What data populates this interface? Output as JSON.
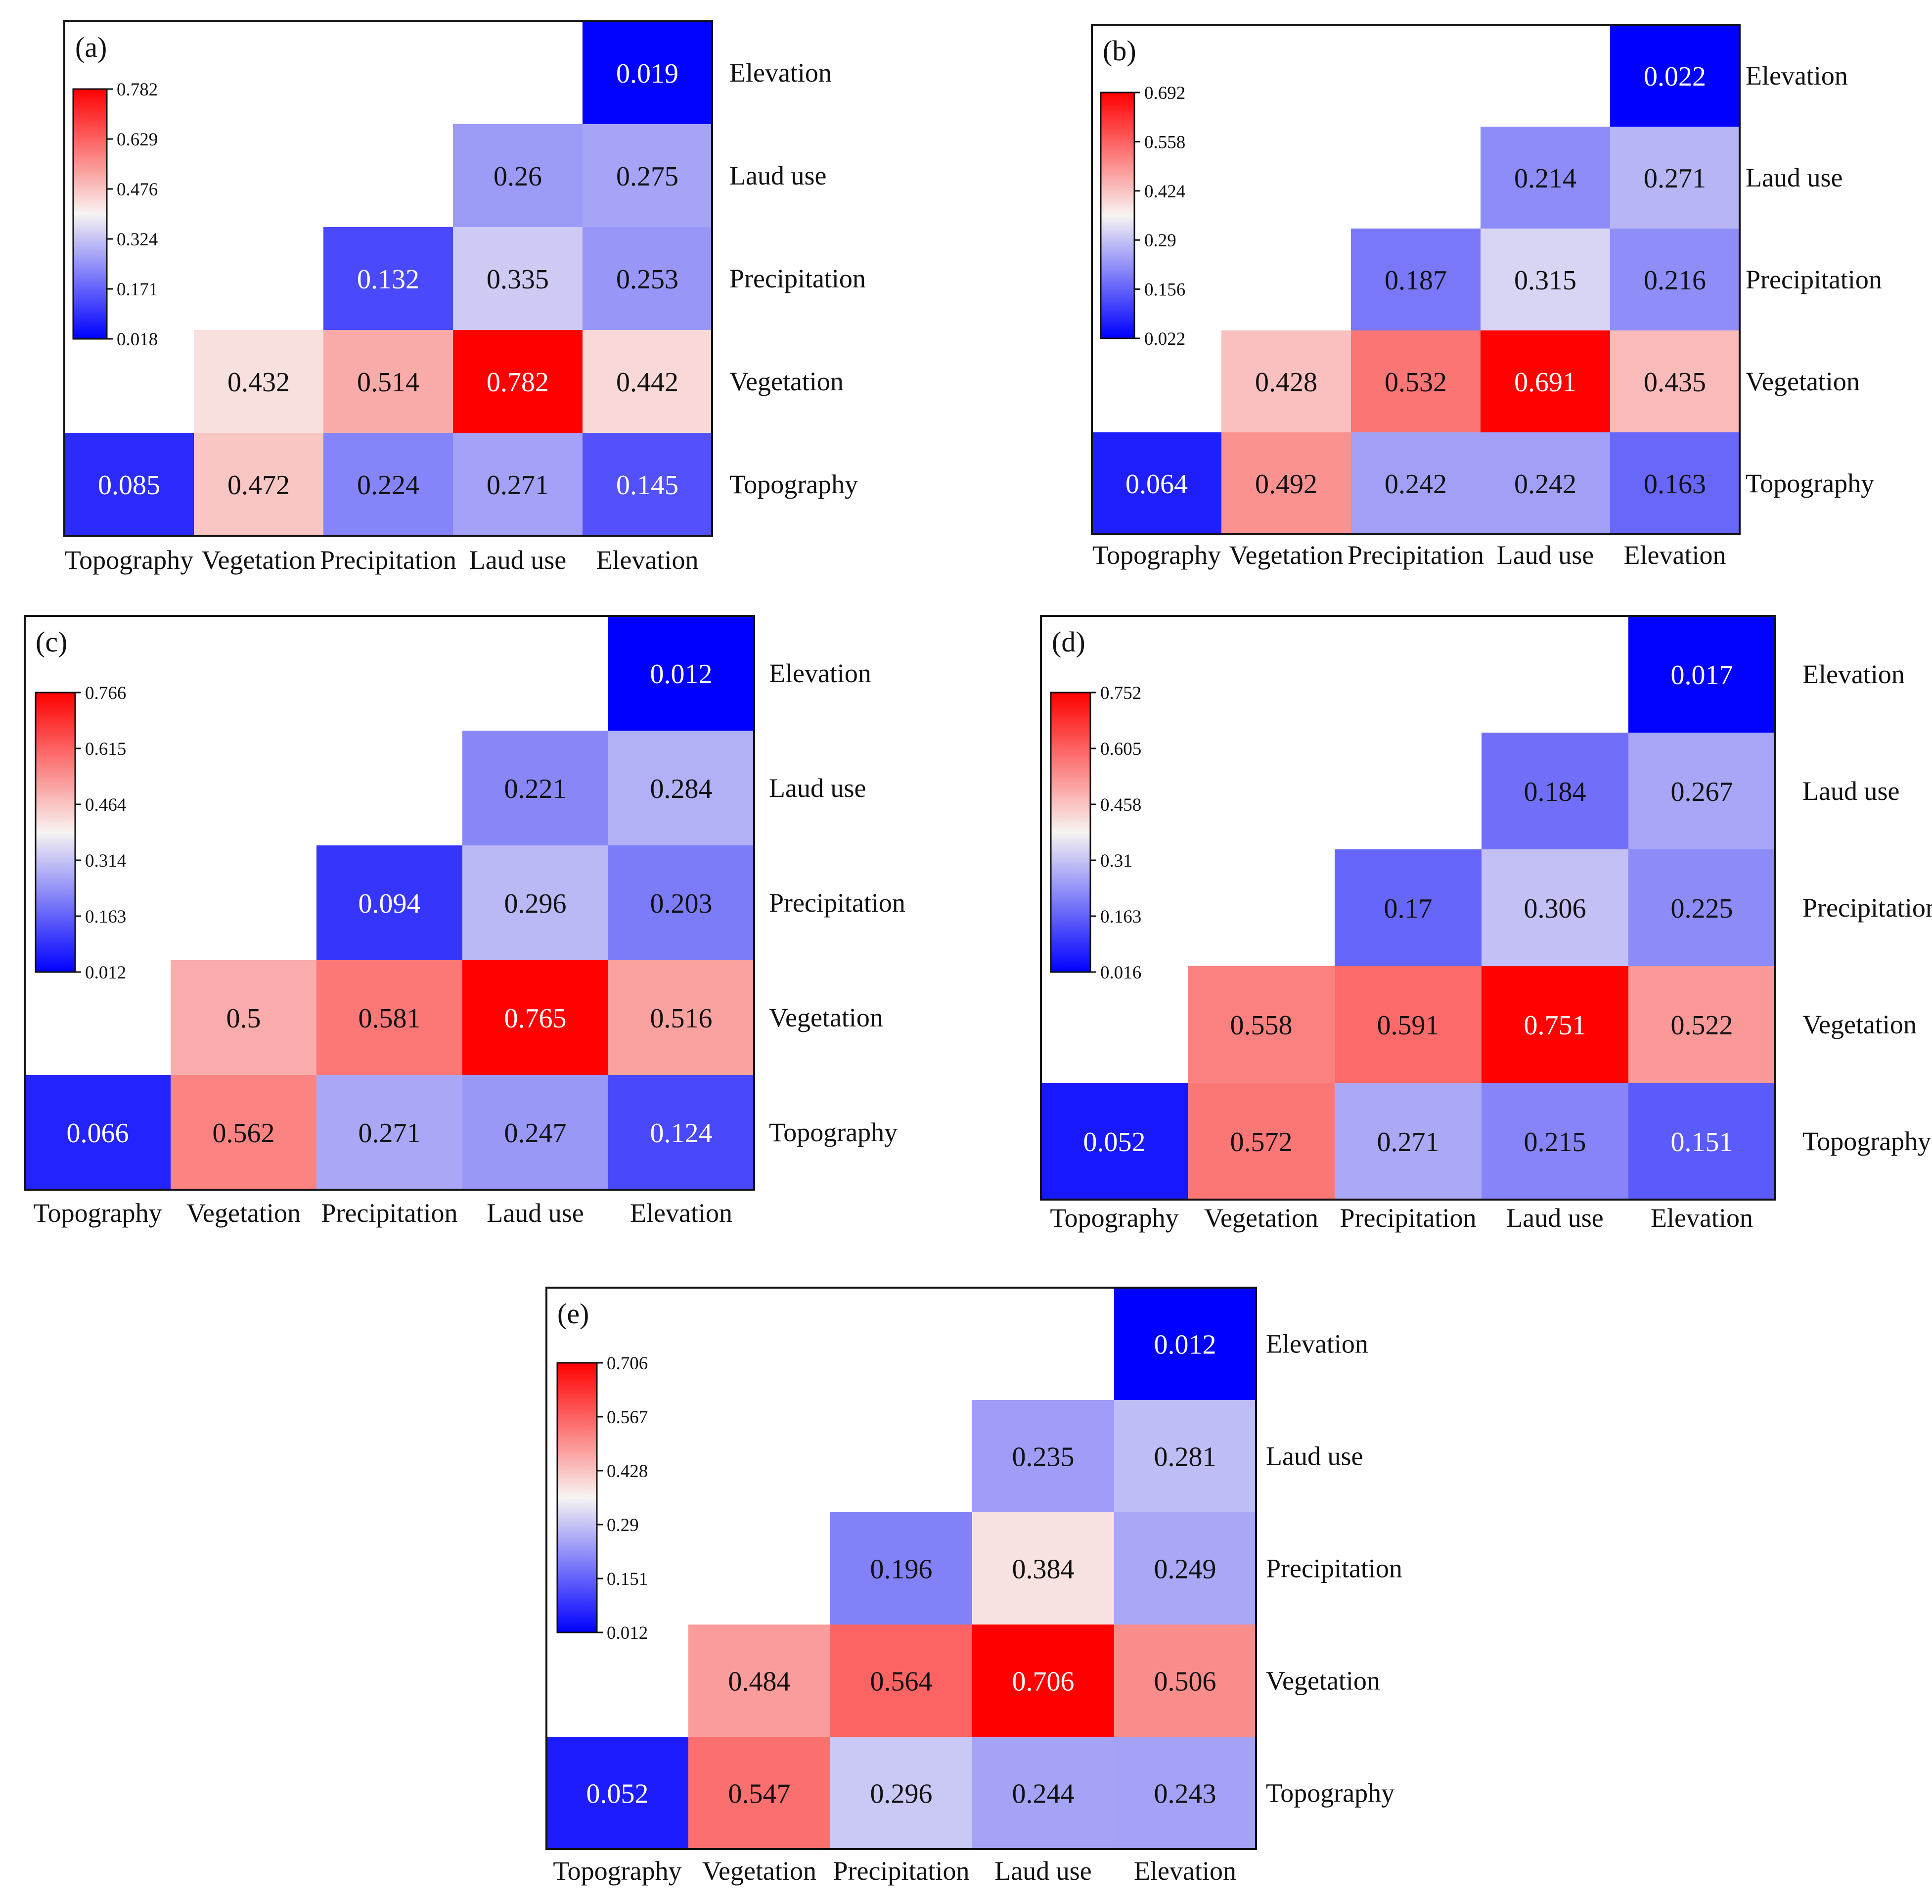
{
  "chart_data": [
    {
      "type": "heatmap",
      "panel_label": "(a)",
      "x_labels": [
        "Topography",
        "Vegetation",
        "Precipitation",
        "Laud use",
        "Elevation"
      ],
      "y_labels": [
        "Elevation",
        "Laud use",
        "Precipitation",
        "Vegetation",
        "Topography"
      ],
      "colorbar_ticks": [
        "0.782",
        "0.629",
        "0.476",
        "0.324",
        "0.171",
        "0.018"
      ],
      "color_range": [
        0.018,
        0.782
      ],
      "rows": [
        [
          null,
          null,
          null,
          null,
          0.019
        ],
        [
          null,
          null,
          null,
          0.26,
          0.275
        ],
        [
          null,
          null,
          0.132,
          0.335,
          0.253
        ],
        [
          null,
          0.432,
          0.514,
          0.782,
          0.442
        ],
        [
          0.085,
          0.472,
          0.224,
          0.271,
          0.145
        ]
      ],
      "row_labels": [
        [
          null,
          null,
          null,
          null,
          "0.019"
        ],
        [
          null,
          null,
          null,
          "0.26",
          "0.275"
        ],
        [
          null,
          null,
          "0.132",
          "0.335",
          "0.253"
        ],
        [
          null,
          "0.432",
          "0.514",
          "0.782",
          "0.442"
        ],
        [
          "0.085",
          "0.472",
          "0.224",
          "0.271",
          "0.145"
        ]
      ]
    },
    {
      "type": "heatmap",
      "panel_label": "(b)",
      "x_labels": [
        "Topography",
        "Vegetation",
        "Precipitation",
        "Laud use",
        "Elevation"
      ],
      "y_labels": [
        "Elevation",
        "Laud use",
        "Precipitation",
        "Vegetation",
        "Topography"
      ],
      "colorbar_ticks": [
        "0.692",
        "0.558",
        "0.424",
        "0.29",
        "0.156",
        "0.022"
      ],
      "color_range": [
        0.022,
        0.692
      ],
      "rows": [
        [
          null,
          null,
          null,
          null,
          0.022
        ],
        [
          null,
          null,
          null,
          0.214,
          0.271
        ],
        [
          null,
          null,
          0.187,
          0.315,
          0.216
        ],
        [
          null,
          0.428,
          0.532,
          0.691,
          0.435
        ],
        [
          0.064,
          0.492,
          0.242,
          0.242,
          0.163
        ]
      ],
      "row_labels": [
        [
          null,
          null,
          null,
          null,
          "0.022"
        ],
        [
          null,
          null,
          null,
          "0.214",
          "0.271"
        ],
        [
          null,
          null,
          "0.187",
          "0.315",
          "0.216"
        ],
        [
          null,
          "0.428",
          "0.532",
          "0.691",
          "0.435"
        ],
        [
          "0.064",
          "0.492",
          "0.242",
          "0.242",
          "0.163"
        ]
      ]
    },
    {
      "type": "heatmap",
      "panel_label": "(c)",
      "x_labels": [
        "Topography",
        "Vegetation",
        "Precipitation",
        "Laud use",
        "Elevation"
      ],
      "y_labels": [
        "Elevation",
        "Laud use",
        "Precipitation",
        "Vegetation",
        "Topography"
      ],
      "colorbar_ticks": [
        "0.766",
        "0.615",
        "0.464",
        "0.314",
        "0.163",
        "0.012"
      ],
      "color_range": [
        0.012,
        0.766
      ],
      "rows": [
        [
          null,
          null,
          null,
          null,
          0.012
        ],
        [
          null,
          null,
          null,
          0.221,
          0.284
        ],
        [
          null,
          null,
          0.094,
          0.296,
          0.203
        ],
        [
          null,
          0.5,
          0.581,
          0.765,
          0.516
        ],
        [
          0.066,
          0.562,
          0.271,
          0.247,
          0.124
        ]
      ],
      "row_labels": [
        [
          null,
          null,
          null,
          null,
          "0.012"
        ],
        [
          null,
          null,
          null,
          "0.221",
          "0.284"
        ],
        [
          null,
          null,
          "0.094",
          "0.296",
          "0.203"
        ],
        [
          null,
          "0.5",
          "0.581",
          "0.765",
          "0.516"
        ],
        [
          "0.066",
          "0.562",
          "0.271",
          "0.247",
          "0.124"
        ]
      ]
    },
    {
      "type": "heatmap",
      "panel_label": "(d)",
      "x_labels": [
        "Topography",
        "Vegetation",
        "Precipitation",
        "Laud use",
        "Elevation"
      ],
      "y_labels": [
        "Elevation",
        "Laud use",
        "Precipitation",
        "Vegetation",
        "Topography"
      ],
      "colorbar_ticks": [
        "0.752",
        "0.605",
        "0.458",
        "0.31",
        "0.163",
        "0.016"
      ],
      "color_range": [
        0.016,
        0.752
      ],
      "rows": [
        [
          null,
          null,
          null,
          null,
          0.017
        ],
        [
          null,
          null,
          null,
          0.184,
          0.267
        ],
        [
          null,
          null,
          0.17,
          0.306,
          0.225
        ],
        [
          null,
          0.558,
          0.591,
          0.751,
          0.522
        ],
        [
          0.052,
          0.572,
          0.271,
          0.215,
          0.151
        ]
      ],
      "row_labels": [
        [
          null,
          null,
          null,
          null,
          "0.017"
        ],
        [
          null,
          null,
          null,
          "0.184",
          "0.267"
        ],
        [
          null,
          null,
          "0.17",
          "0.306",
          "0.225"
        ],
        [
          null,
          "0.558",
          "0.591",
          "0.751",
          "0.522"
        ],
        [
          "0.052",
          "0.572",
          "0.271",
          "0.215",
          "0.151"
        ]
      ]
    },
    {
      "type": "heatmap",
      "panel_label": "(e)",
      "x_labels": [
        "Topography",
        "Vegetation",
        "Precipitation",
        "Laud use",
        "Elevation"
      ],
      "y_labels": [
        "Elevation",
        "Laud use",
        "Precipitation",
        "Vegetation",
        "Topography"
      ],
      "colorbar_ticks": [
        "0.706",
        "0.567",
        "0.428",
        "0.29",
        "0.151",
        "0.012"
      ],
      "color_range": [
        0.012,
        0.706
      ],
      "rows": [
        [
          null,
          null,
          null,
          null,
          0.012
        ],
        [
          null,
          null,
          null,
          0.235,
          0.281
        ],
        [
          null,
          null,
          0.196,
          0.384,
          0.249
        ],
        [
          null,
          0.484,
          0.564,
          0.706,
          0.506
        ],
        [
          0.052,
          0.547,
          0.296,
          0.244,
          0.243
        ]
      ],
      "row_labels": [
        [
          null,
          null,
          null,
          null,
          "0.012"
        ],
        [
          null,
          null,
          null,
          "0.235",
          "0.281"
        ],
        [
          null,
          null,
          "0.196",
          "0.384",
          "0.249"
        ],
        [
          null,
          "0.484",
          "0.564",
          "0.706",
          "0.506"
        ],
        [
          "0.052",
          "0.547",
          "0.296",
          "0.244",
          "0.243"
        ]
      ]
    }
  ],
  "colors": {
    "low": "#0000ff",
    "mid": "#f7f4f2",
    "high": "#ff0000",
    "border": "#111111",
    "text_dark": "#111111",
    "text_light": "#ffffff"
  }
}
